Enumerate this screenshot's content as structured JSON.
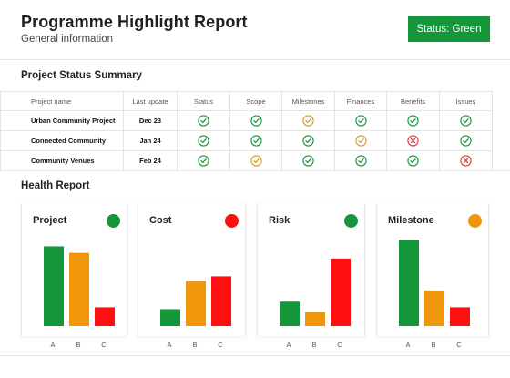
{
  "header": {
    "title": "Programme Highlight Report",
    "subtitle": "General information",
    "status_label": "Status: Green"
  },
  "summary": {
    "title": "Project Status Summary",
    "columns": [
      "Project name",
      "Last update",
      "Status",
      "Scope",
      "Milestones",
      "Finances",
      "Benefits",
      "Issues"
    ],
    "rows": [
      {
        "name": "Urban Community Project",
        "date": "Dec 23",
        "statuses": [
          "green",
          "green",
          "amber",
          "green",
          "green",
          "green"
        ]
      },
      {
        "name": "Connected Community",
        "date": "Jan 24",
        "statuses": [
          "green",
          "green",
          "green",
          "amber",
          "red",
          "green"
        ]
      },
      {
        "name": "Community Venues",
        "date": "Feb 24",
        "statuses": [
          "green",
          "amber",
          "green",
          "green",
          "green",
          "red"
        ]
      }
    ]
  },
  "health": {
    "title": "Health Report",
    "categories": [
      "A",
      "B",
      "C"
    ],
    "colors": {
      "green": "#14963a",
      "amber": "#f0960a",
      "red": "#ff0f0f"
    },
    "cards": [
      {
        "title": "Project",
        "status": "green",
        "values": [
          85,
          78,
          20
        ]
      },
      {
        "title": "Cost",
        "status": "red",
        "values": [
          18,
          48,
          53
        ]
      },
      {
        "title": "Risk",
        "status": "green",
        "values": [
          26,
          15,
          72
        ]
      },
      {
        "title": "Milestone",
        "status": "amber",
        "values": [
          92,
          38,
          20
        ]
      }
    ]
  },
  "chart_data": [
    {
      "type": "bar",
      "title": "Project",
      "categories": [
        "A",
        "B",
        "C"
      ],
      "values": [
        85,
        78,
        20
      ]
    },
    {
      "type": "bar",
      "title": "Cost",
      "categories": [
        "A",
        "B",
        "C"
      ],
      "values": [
        18,
        48,
        53
      ]
    },
    {
      "type": "bar",
      "title": "Risk",
      "categories": [
        "A",
        "B",
        "C"
      ],
      "values": [
        26,
        15,
        72
      ]
    },
    {
      "type": "bar",
      "title": "Milestone",
      "categories": [
        "A",
        "B",
        "C"
      ],
      "values": [
        92,
        38,
        20
      ]
    }
  ]
}
